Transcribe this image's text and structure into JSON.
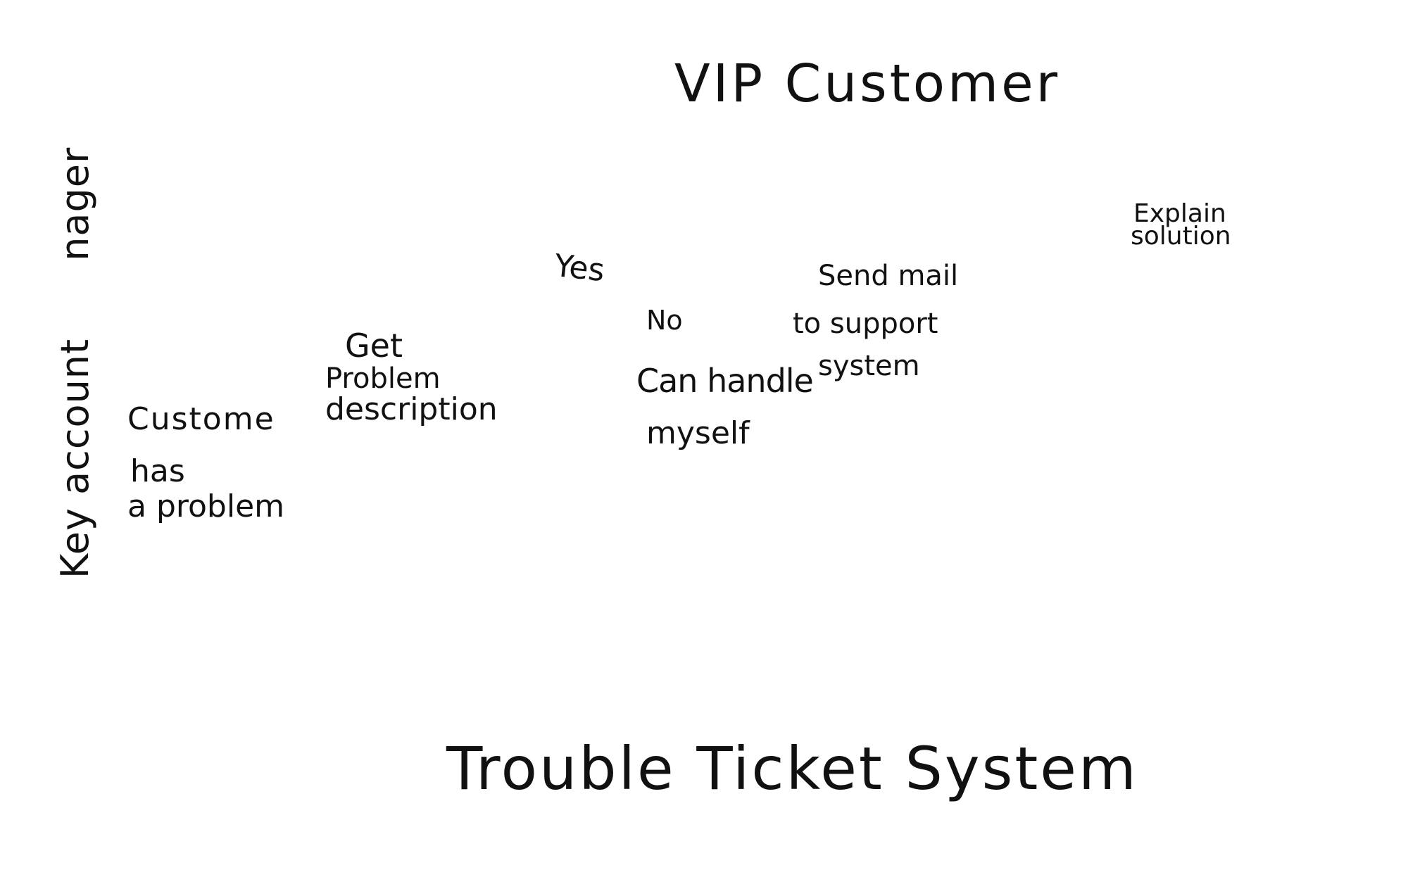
{
  "diagram": {
    "pools": {
      "top": "VIP Customer",
      "bottom": "Trouble Ticket System"
    },
    "lane": {
      "part1": "Key account",
      "part2": "nager"
    },
    "nodes": {
      "start": {
        "line1": "Custome",
        "line2": "has",
        "line3": "a problem"
      },
      "get_description": {
        "line1": "Get",
        "line2": "Problem",
        "line3": "description"
      },
      "decision": {
        "line1": "Can handle",
        "line2": "myself"
      },
      "send_mail": {
        "line1": "Send mail",
        "line2": "to support",
        "line3": "system"
      },
      "explain": {
        "line1": "Explain",
        "line2": "solution"
      }
    },
    "edge_labels": {
      "yes": "Yes",
      "no": "No"
    }
  }
}
